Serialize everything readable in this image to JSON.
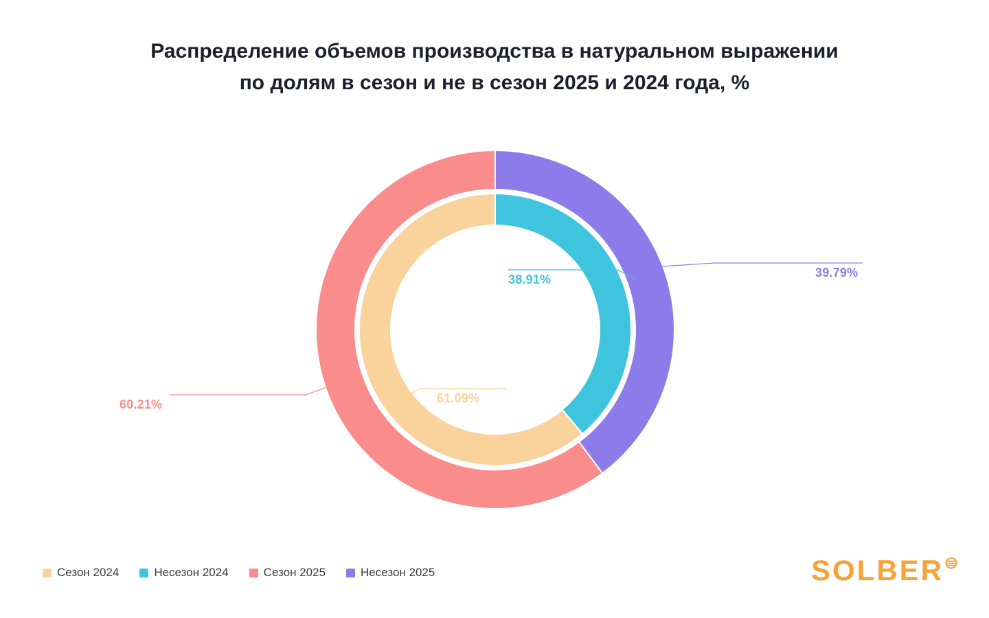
{
  "title": {
    "line1": "Распределение объемов производства в натуральном выражении",
    "line2": "по долям в сезон и не в сезон 2025 и 2024 года, %"
  },
  "chart_data": {
    "type": "pie",
    "variant": "nested-donut",
    "start_position": "top",
    "direction": "clockwise",
    "rings": [
      {
        "id": "outer-2025",
        "year": "2025",
        "segments": [
          {
            "label": "Несезон 2025",
            "value": 39.79,
            "display": "39.79%",
            "color": "#8C7BE9"
          },
          {
            "label": "Сезон 2025",
            "value": 60.21,
            "display": "60.21%",
            "color": "#FA8C8C"
          }
        ]
      },
      {
        "id": "inner-2024",
        "year": "2024",
        "segments": [
          {
            "label": "Несезон 2024",
            "value": 38.91,
            "display": "38.91%",
            "color": "#3EC4DC"
          },
          {
            "label": "Сезон 2024",
            "value": 61.09,
            "display": "61.09%",
            "color": "#FAD29B"
          }
        ]
      }
    ]
  },
  "legend": [
    {
      "label": "Сезон 2024",
      "color": "#FAD29B"
    },
    {
      "label": "Несезон 2024",
      "color": "#3EC4DC"
    },
    {
      "label": "Сезон 2025",
      "color": "#FA8C8C"
    },
    {
      "label": "Несезон 2025",
      "color": "#8C7BE9"
    }
  ],
  "logo": {
    "text": "SOLBER",
    "color": "#F9A237"
  }
}
